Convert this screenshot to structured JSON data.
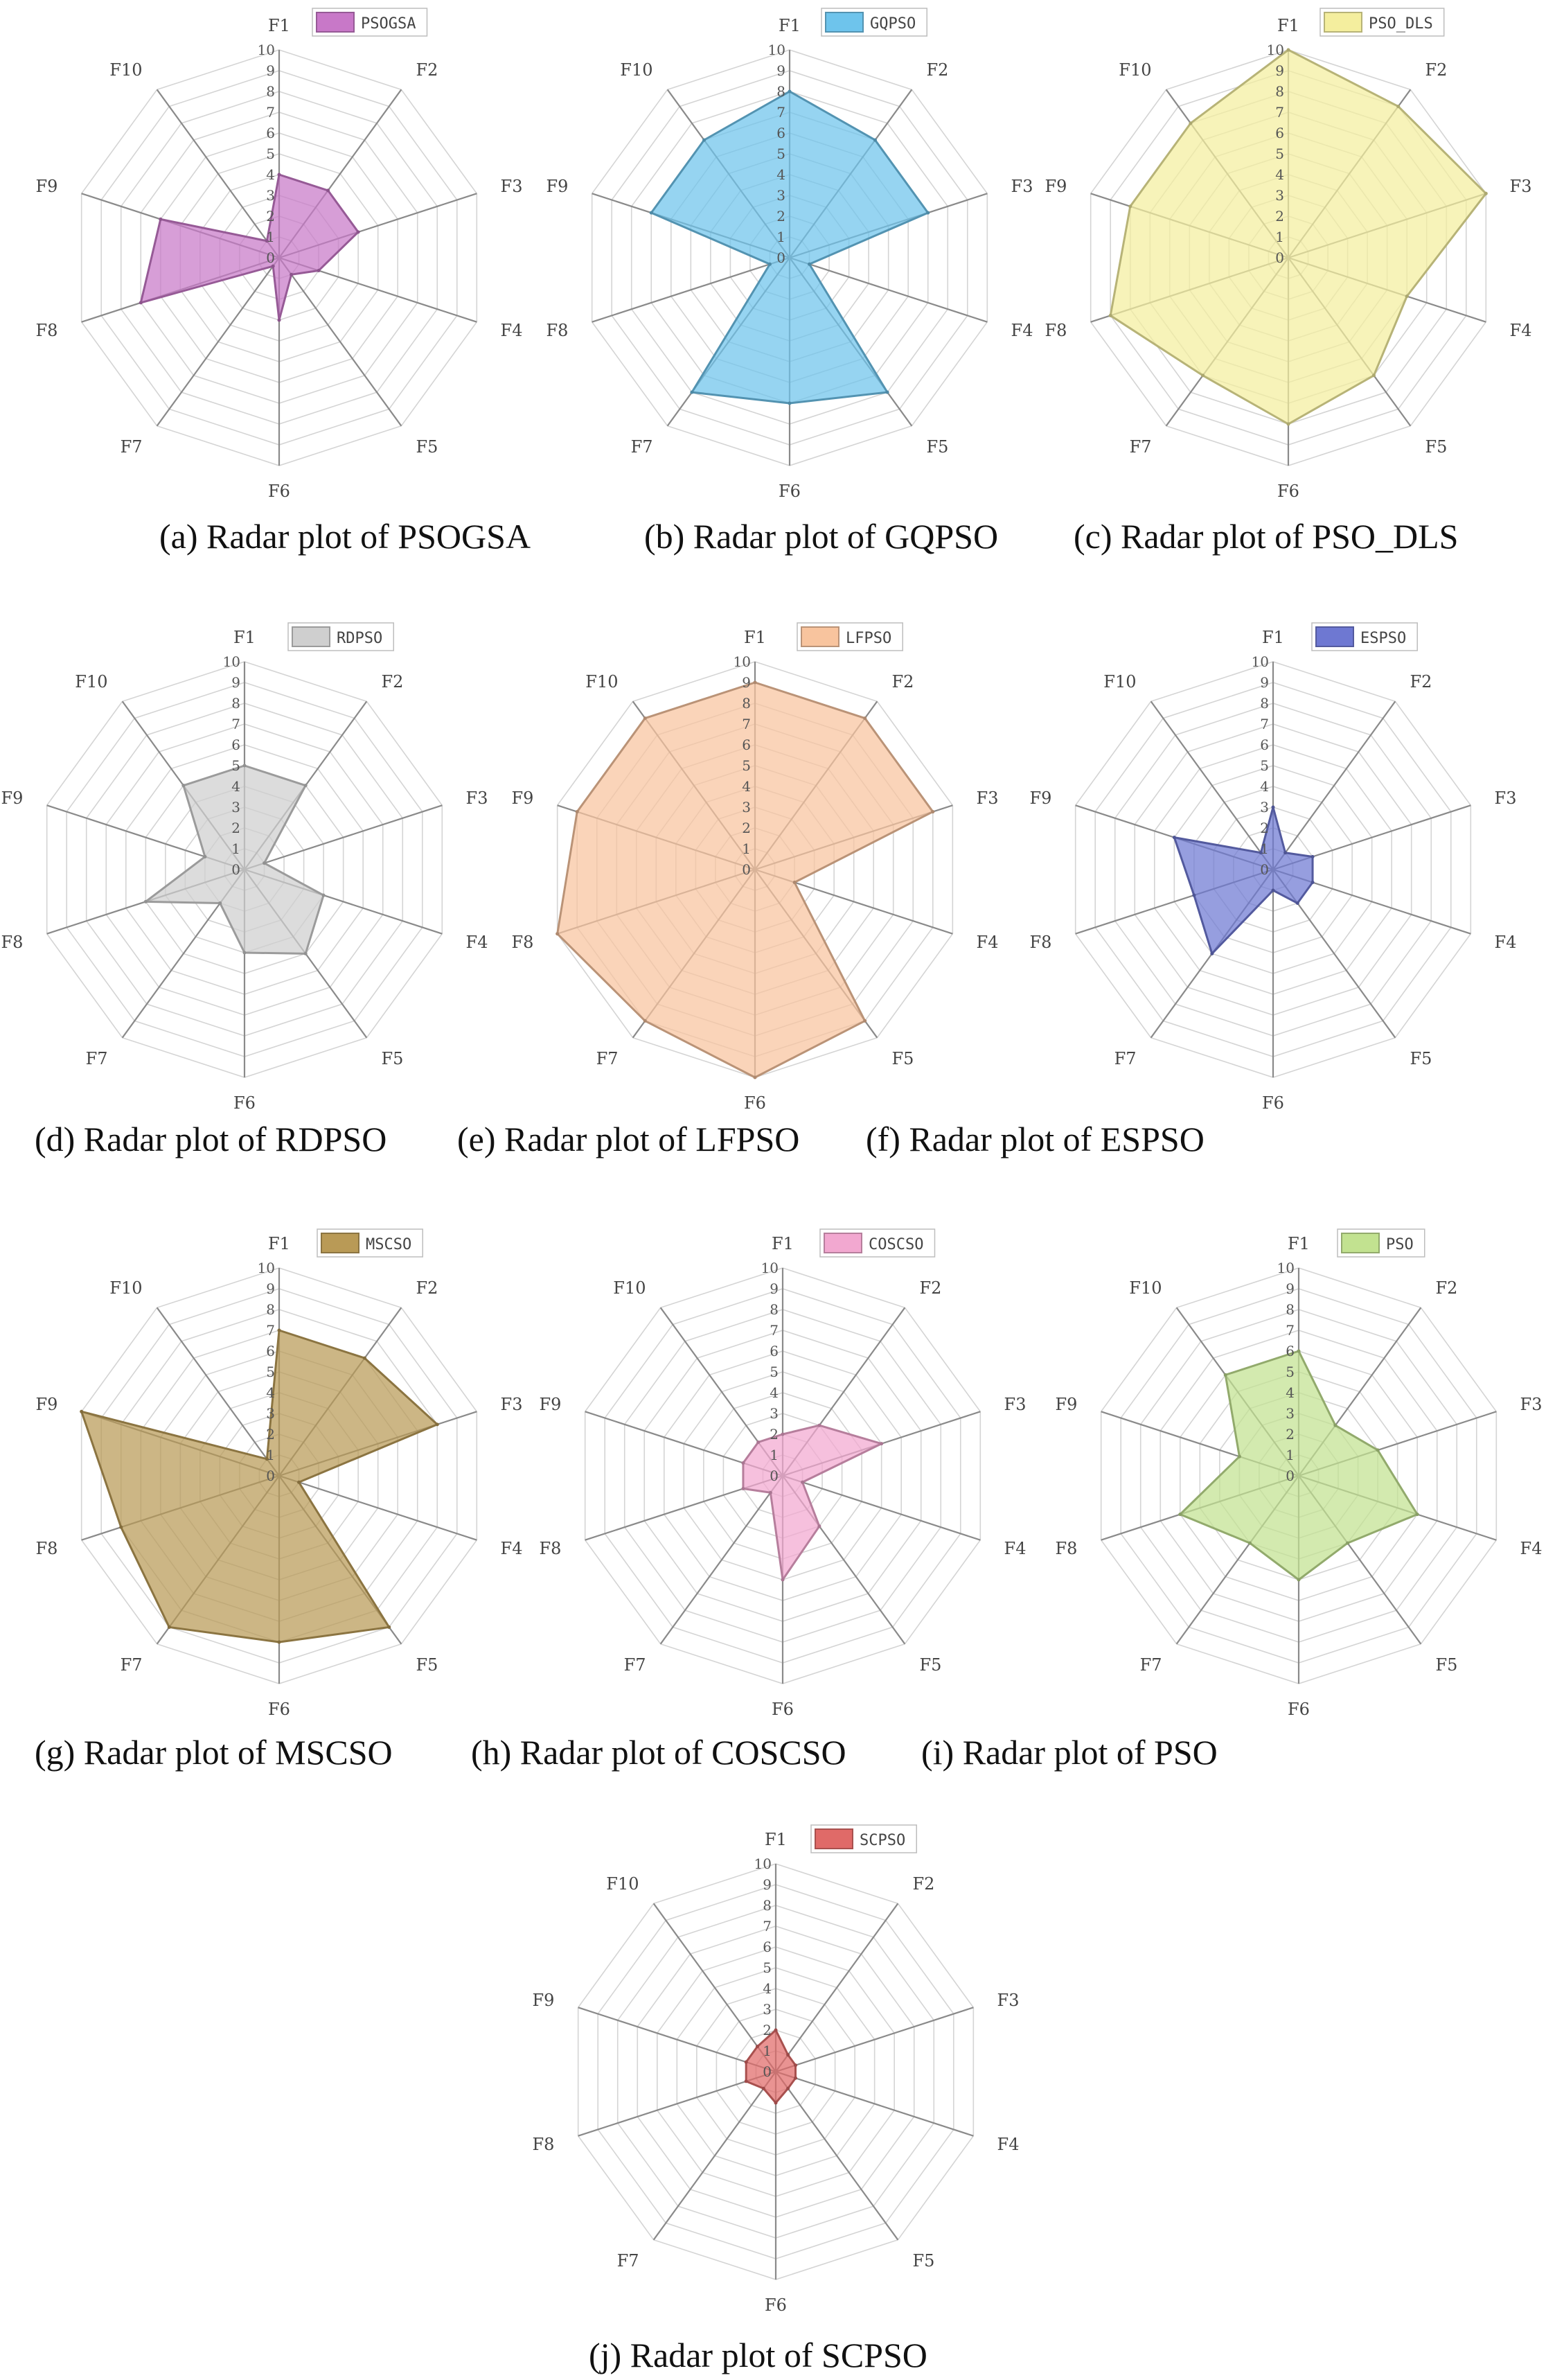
{
  "chart_data": [
    {
      "type": "radar",
      "title": "",
      "caption": "(a) Radar plot of PSOGSA",
      "categories": [
        "F1",
        "F2",
        "F3",
        "F4",
        "F5",
        "F6",
        "F7",
        "F8",
        "F9",
        "F10"
      ],
      "ticks": [
        "0",
        "1",
        "2",
        "3",
        "4",
        "5",
        "6",
        "7",
        "8",
        "9",
        "10"
      ],
      "rlim": [
        0,
        10
      ],
      "series": [
        {
          "name": "PSOGSA",
          "values": [
            4,
            4,
            4,
            2,
            1,
            3,
            0.5,
            7,
            6,
            1
          ],
          "color": "#c878c8"
        }
      ],
      "legend": "top-right",
      "grid": true
    },
    {
      "type": "radar",
      "title": "",
      "caption": "(b) Radar plot of GQPSO",
      "categories": [
        "F1",
        "F2",
        "F3",
        "F4",
        "F5",
        "F6",
        "F7",
        "F8",
        "F9",
        "F10"
      ],
      "ticks": [
        "0",
        "1",
        "2",
        "3",
        "4",
        "5",
        "6",
        "7",
        "8",
        "9",
        "10"
      ],
      "rlim": [
        0,
        10
      ],
      "series": [
        {
          "name": "GQPSO",
          "values": [
            8,
            7,
            7,
            1,
            8,
            7,
            8,
            1,
            7,
            7
          ],
          "color": "#6ec4ec"
        }
      ],
      "legend": "top-right",
      "grid": true
    },
    {
      "type": "radar",
      "title": "",
      "caption": "(c) Radar plot of PSO_DLS",
      "categories": [
        "F1",
        "F2",
        "F3",
        "F4",
        "F5",
        "F6",
        "F7",
        "F8",
        "F9",
        "F10"
      ],
      "ticks": [
        "0",
        "1",
        "2",
        "3",
        "4",
        "5",
        "6",
        "7",
        "8",
        "9",
        "10"
      ],
      "rlim": [
        0,
        10
      ],
      "series": [
        {
          "name": "PSO_DLS",
          "values": [
            10,
            9,
            10,
            6,
            7,
            8,
            7,
            9,
            8,
            8
          ],
          "color": "#f4ee9e"
        }
      ],
      "legend": "top-right",
      "grid": true
    },
    {
      "type": "radar",
      "title": "",
      "caption": "(d) Radar plot of RDPSO",
      "categories": [
        "F1",
        "F2",
        "F3",
        "F4",
        "F5",
        "F6",
        "F7",
        "F8",
        "F9",
        "F10"
      ],
      "ticks": [
        "0",
        "1",
        "2",
        "3",
        "4",
        "5",
        "6",
        "7",
        "8",
        "9",
        "10"
      ],
      "rlim": [
        0,
        10
      ],
      "series": [
        {
          "name": "RDPSO",
          "values": [
            5,
            5,
            1,
            4,
            5,
            4,
            2,
            5,
            2,
            5
          ],
          "color": "#cfcfcf"
        }
      ],
      "legend": "top-right",
      "grid": true
    },
    {
      "type": "radar",
      "title": "",
      "caption": "(e) Radar plot of LFPSO",
      "categories": [
        "F1",
        "F2",
        "F3",
        "F4",
        "F5",
        "F6",
        "F7",
        "F8",
        "F9",
        "F10"
      ],
      "ticks": [
        "0",
        "1",
        "2",
        "3",
        "4",
        "5",
        "6",
        "7",
        "8",
        "9",
        "10"
      ],
      "rlim": [
        0,
        10
      ],
      "series": [
        {
          "name": "LFPSO",
          "values": [
            9,
            9,
            9,
            2,
            9,
            10,
            9,
            10,
            9,
            9
          ],
          "color": "#f8c49e"
        }
      ],
      "legend": "top-right",
      "grid": true
    },
    {
      "type": "radar",
      "title": "",
      "caption": "(f) Radar plot of ESPSO",
      "categories": [
        "F1",
        "F2",
        "F3",
        "F4",
        "F5",
        "F6",
        "F7",
        "F8",
        "F9",
        "F10"
      ],
      "ticks": [
        "0",
        "1",
        "2",
        "3",
        "4",
        "5",
        "6",
        "7",
        "8",
        "9",
        "10"
      ],
      "rlim": [
        0,
        10
      ],
      "series": [
        {
          "name": "ESPSO",
          "values": [
            3,
            1,
            2,
            2,
            2,
            1,
            5,
            4,
            5,
            1
          ],
          "color": "#6e78d2"
        }
      ],
      "legend": "top-right",
      "grid": true
    },
    {
      "type": "radar",
      "title": "",
      "caption": "(g) Radar plot of MSCSO",
      "categories": [
        "F1",
        "F2",
        "F3",
        "F4",
        "F5",
        "F6",
        "F7",
        "F8",
        "F9",
        "F10"
      ],
      "ticks": [
        "0",
        "1",
        "2",
        "3",
        "4",
        "5",
        "6",
        "7",
        "8",
        "9",
        "10"
      ],
      "rlim": [
        0,
        10
      ],
      "series": [
        {
          "name": "MSCSO",
          "values": [
            7,
            7,
            8,
            1,
            9,
            8,
            9,
            8,
            10,
            1
          ],
          "color": "#b99a56"
        }
      ],
      "legend": "top-right",
      "grid": true
    },
    {
      "type": "radar",
      "title": "",
      "caption": "(h) Radar plot of COSCSO",
      "categories": [
        "F1",
        "F2",
        "F3",
        "F4",
        "F5",
        "F6",
        "F7",
        "F8",
        "F9",
        "F10"
      ],
      "ticks": [
        "0",
        "1",
        "2",
        "3",
        "4",
        "5",
        "6",
        "7",
        "8",
        "9",
        "10"
      ],
      "rlim": [
        0,
        10
      ],
      "series": [
        {
          "name": "COSCSO",
          "values": [
            2,
            3,
            5,
            1,
            3,
            5,
            1,
            2,
            2,
            2
          ],
          "color": "#f2a8d0"
        }
      ],
      "legend": "top-right",
      "grid": true
    },
    {
      "type": "radar",
      "title": "",
      "caption": "(i) Radar plot of PSO",
      "categories": [
        "F1",
        "F2",
        "F3",
        "F4",
        "F5",
        "F6",
        "F7",
        "F8",
        "F9",
        "F10"
      ],
      "ticks": [
        "0",
        "1",
        "2",
        "3",
        "4",
        "5",
        "6",
        "7",
        "8",
        "9",
        "10"
      ],
      "rlim": [
        0,
        10
      ],
      "series": [
        {
          "name": "PSO",
          "values": [
            6,
            3,
            4,
            6,
            4,
            5,
            4,
            6,
            3,
            6
          ],
          "color": "#c2e290"
        }
      ],
      "legend": "top-right",
      "grid": true
    },
    {
      "type": "radar",
      "title": "",
      "caption": "(j) Radar plot of SCPSO",
      "categories": [
        "F1",
        "F2",
        "F3",
        "F4",
        "F5",
        "F6",
        "F7",
        "F8",
        "F9",
        "F10"
      ],
      "ticks": [
        "0",
        "1",
        "2",
        "3",
        "4",
        "5",
        "6",
        "7",
        "8",
        "9",
        "10"
      ],
      "rlim": [
        0,
        10
      ],
      "series": [
        {
          "name": "SCPSO",
          "values": [
            2,
            1,
            1,
            1,
            1,
            1.5,
            1,
            1.5,
            1.5,
            1.5
          ],
          "color": "#e06a68"
        }
      ],
      "legend": "top-right",
      "grid": true
    }
  ]
}
